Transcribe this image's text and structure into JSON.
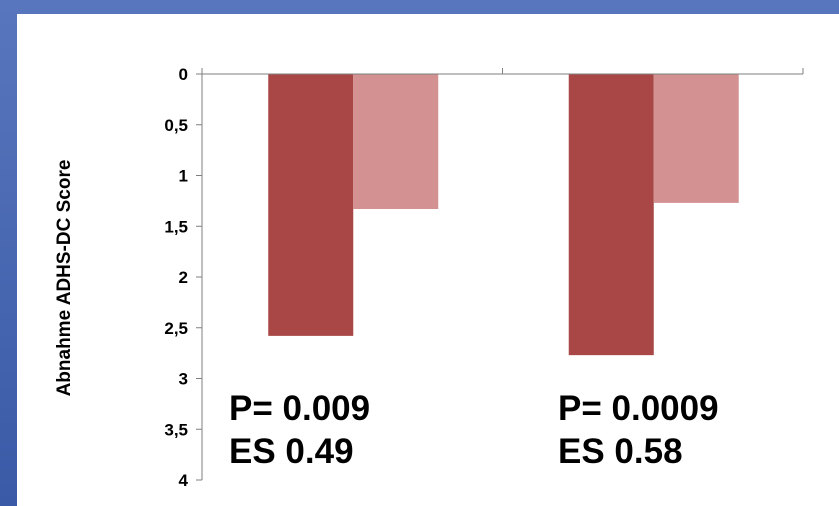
{
  "chart_data": {
    "type": "bar",
    "ylabel": "Abnahme ADHS-DC Score",
    "xlabel": "",
    "title": "",
    "ylim": [
      0,
      4
    ],
    "y_inverted": true,
    "y_ticks": [
      "0",
      "0,5",
      "1",
      "1,5",
      "2",
      "2,5",
      "3",
      "3,5",
      "4"
    ],
    "categories": [
      "",
      ""
    ],
    "series": [
      {
        "values": [
          2.58,
          2.77
        ],
        "color": "#a84745"
      },
      {
        "values": [
          1.33,
          1.27
        ],
        "color": "#d39291"
      }
    ],
    "annotations": [
      {
        "p": "P= 0.009",
        "es": "ES 0.49"
      },
      {
        "p": "P= 0.0009",
        "es": "ES 0.58"
      }
    ],
    "grid": false,
    "legend": "none"
  }
}
